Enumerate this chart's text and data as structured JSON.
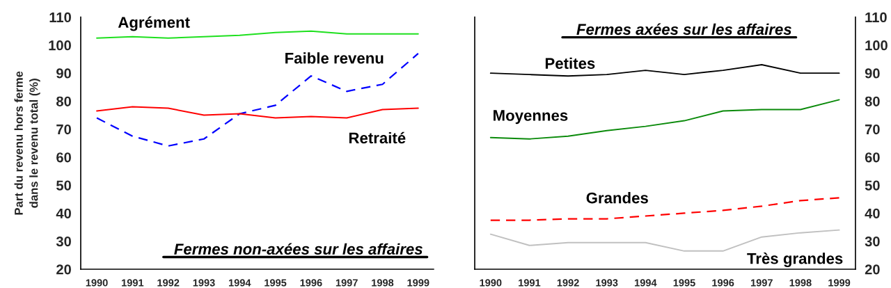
{
  "chart_data": [
    {
      "type": "line",
      "title": "Fermes non-axées sur les affaires",
      "ylabel": "Part du revenu hors ferme\ndans le revenu total (%)",
      "categories": [
        "1990",
        "1991",
        "1992",
        "1993",
        "1994",
        "1995",
        "1996",
        "1997",
        "1998",
        "1999"
      ],
      "ylim": [
        20,
        110
      ],
      "yticks": [
        20,
        30,
        40,
        50,
        60,
        70,
        80,
        90,
        100,
        110
      ],
      "series": [
        {
          "name": "Agrément",
          "color": "#1ee01e",
          "values": [
            102.5,
            103,
            102.5,
            103,
            103.5,
            104.5,
            105,
            104,
            104,
            104
          ]
        },
        {
          "name": "Faible revenu",
          "color": "#0000ff",
          "line_style": "dashed",
          "values": [
            74,
            67.5,
            64,
            66.5,
            75.5,
            78.5,
            89,
            83.5,
            86,
            97
          ]
        },
        {
          "name": "Retraité",
          "color": "#ff0000",
          "values": [
            76.5,
            78,
            77.5,
            75,
            75.5,
            74,
            74.5,
            74,
            77,
            77.5
          ]
        }
      ]
    },
    {
      "type": "line",
      "title": "Fermes axées sur les affaires",
      "categories": [
        "1990",
        "1991",
        "1992",
        "1993",
        "1994",
        "1995",
        "1996",
        "1997",
        "1998",
        "1999"
      ],
      "ylim": [
        20,
        110
      ],
      "yticks": [
        20,
        30,
        40,
        50,
        60,
        70,
        80,
        90,
        100,
        110
      ],
      "series": [
        {
          "name": "Petites",
          "color": "#000000",
          "values": [
            90,
            89.5,
            89,
            89.5,
            91,
            89.5,
            91,
            93,
            90,
            90
          ]
        },
        {
          "name": "Moyennes",
          "color": "#0a8a0a",
          "values": [
            67,
            66.5,
            67.5,
            69.5,
            71,
            73,
            76.5,
            77,
            77,
            80.5
          ]
        },
        {
          "name": "Grandes",
          "color": "#ff0000",
          "line_style": "dashed",
          "values": [
            37.5,
            37.5,
            38,
            38,
            39,
            40,
            41,
            42.5,
            44.5,
            45.5
          ]
        },
        {
          "name": "Très grandes",
          "color": "#c0c0c0",
          "values": [
            32.5,
            28.5,
            29.5,
            29.5,
            29.5,
            26.5,
            26.5,
            31.5,
            33,
            34
          ]
        }
      ]
    }
  ]
}
